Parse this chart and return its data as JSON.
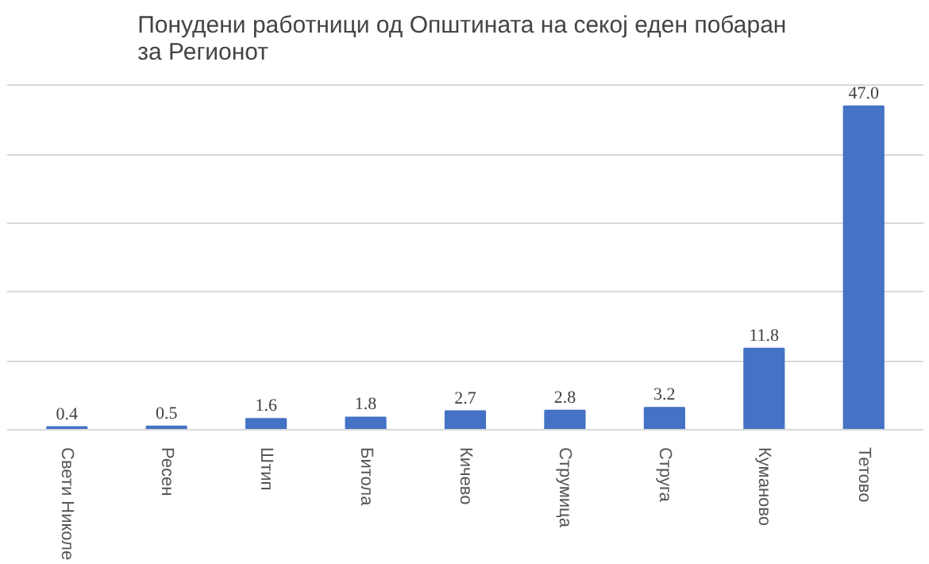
{
  "chart_data": {
    "type": "bar",
    "title": "Понудени работници  од Општината на секој еден побаран\nза Регионот",
    "categories": [
      "Свети Николе",
      "Ресен",
      "Штип",
      "Битола",
      "Кичево",
      "Струмица",
      "Струга",
      "Куманово",
      "Тетово"
    ],
    "values": [
      0.4,
      0.5,
      1.6,
      1.8,
      2.7,
      2.8,
      3.2,
      11.8,
      47.0
    ],
    "value_labels": [
      "0.4",
      "0.5",
      "1.6",
      "1.8",
      "2.7",
      "2.8",
      "3.2",
      "11.8",
      "47.0"
    ],
    "color": "#4472c4",
    "grid": "y",
    "tick_labels": "x"
  }
}
